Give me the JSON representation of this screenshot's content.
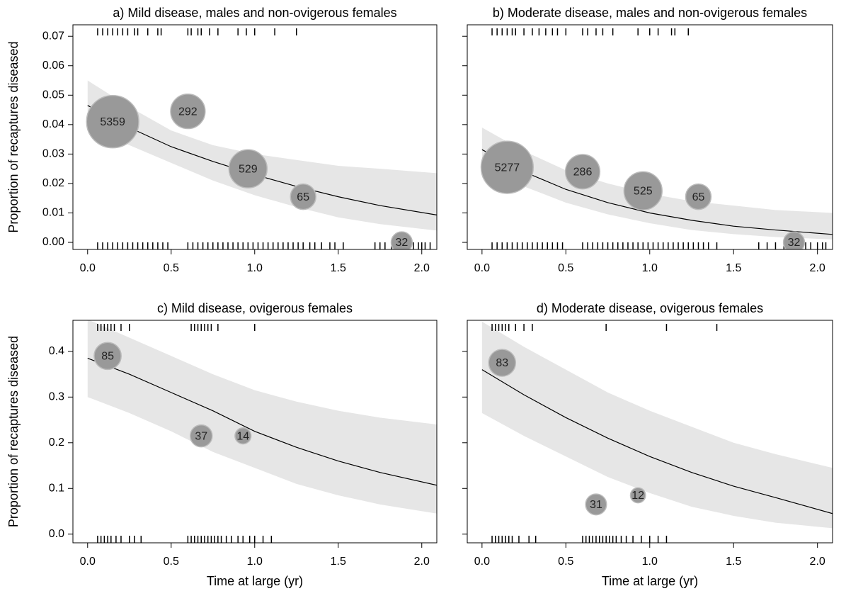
{
  "chart_data": [
    {
      "type": "bubble",
      "title": "a) Mild disease, males and non-ovigerous females",
      "ylabel": "Proportion of recaptures diseased",
      "xlim": [
        -0.088,
        2.09
      ],
      "ylim": [
        -0.0024,
        0.0739
      ],
      "xticks": [
        {
          "value": 0,
          "label": "0.0"
        },
        {
          "value": 0.5,
          "label": "0.5"
        },
        {
          "value": 1,
          "label": "1.0"
        },
        {
          "value": 1.5,
          "label": "1.5"
        },
        {
          "value": 2,
          "label": "2.0"
        }
      ],
      "yticks": [
        {
          "value": 0,
          "label": "0.00"
        },
        {
          "value": 0.01,
          "label": "0.01"
        },
        {
          "value": 0.02,
          "label": "0.02"
        },
        {
          "value": 0.03,
          "label": "0.03"
        },
        {
          "value": 0.04,
          "label": "0.04"
        },
        {
          "value": 0.05,
          "label": "0.05"
        },
        {
          "value": 0.06,
          "label": "0.06"
        },
        {
          "value": 0.07,
          "label": "0.07"
        }
      ],
      "bubbles": {
        "x": [
          0.15,
          0.6,
          0.96,
          1.29,
          1.88
        ],
        "y": [
          0.041,
          0.0445,
          0.025,
          0.0155,
          0.0
        ],
        "n": [
          5359,
          292,
          529,
          65,
          32
        ]
      },
      "fit": {
        "x": [
          0,
          0.25,
          0.5,
          0.75,
          1,
          1.25,
          1.5,
          1.75,
          2.09
        ],
        "y": [
          0.0465,
          0.039,
          0.0325,
          0.0275,
          0.023,
          0.019,
          0.0155,
          0.0125,
          0.0093
        ],
        "lower": [
          0.039,
          0.033,
          0.027,
          0.021,
          0.016,
          0.012,
          0.0085,
          0.0062,
          0.004
        ],
        "upper": [
          0.055,
          0.046,
          0.038,
          0.033,
          0.03,
          0.028,
          0.026,
          0.025,
          0.0235
        ]
      },
      "rug_top": [
        0.06,
        0.09,
        0.12,
        0.15,
        0.18,
        0.21,
        0.24,
        0.28,
        0.3,
        0.36,
        0.42,
        0.44,
        0.6,
        0.62,
        0.66,
        0.68,
        0.73,
        0.78,
        0.9,
        0.95,
        1.0,
        1.12,
        1.25
      ],
      "rug_bottom": [
        0.06,
        0.09,
        0.12,
        0.15,
        0.18,
        0.21,
        0.24,
        0.27,
        0.3,
        0.33,
        0.36,
        0.39,
        0.42,
        0.45,
        0.48,
        0.6,
        0.63,
        0.66,
        0.69,
        0.72,
        0.75,
        0.78,
        0.81,
        0.84,
        0.87,
        0.9,
        0.93,
        0.96,
        0.99,
        1.02,
        1.05,
        1.08,
        1.11,
        1.14,
        1.17,
        1.2,
        1.23,
        1.26,
        1.29,
        1.33,
        1.36,
        1.4,
        1.45,
        1.48,
        1.53,
        1.72,
        1.75,
        1.78,
        1.82,
        1.86,
        1.9,
        1.93,
        1.95,
        1.98,
        2.0,
        2.02,
        2.05
      ]
    },
    {
      "type": "bubble",
      "title": "b) Moderate disease, males and non-ovigerous females",
      "xlim": [
        -0.088,
        2.09
      ],
      "ylim": [
        -0.0024,
        0.0739
      ],
      "xticks": [
        {
          "value": 0,
          "label": "0.0"
        },
        {
          "value": 0.5,
          "label": "0.5"
        },
        {
          "value": 1,
          "label": "1.0"
        },
        {
          "value": 1.5,
          "label": "1.5"
        },
        {
          "value": 2,
          "label": "2.0"
        }
      ],
      "yticks": [
        0,
        0.01,
        0.02,
        0.03,
        0.04,
        0.05,
        0.06,
        0.07
      ],
      "bubbles": {
        "x": [
          0.15,
          0.6,
          0.96,
          1.29,
          1.86
        ],
        "y": [
          0.0255,
          0.024,
          0.0175,
          0.0155,
          0.0
        ],
        "n": [
          5277,
          286,
          525,
          65,
          32
        ]
      },
      "fit": {
        "x": [
          0,
          0.25,
          0.5,
          0.75,
          1,
          1.25,
          1.5,
          1.75,
          2.09
        ],
        "y": [
          0.0315,
          0.024,
          0.018,
          0.0135,
          0.01,
          0.0075,
          0.0055,
          0.0042,
          0.0027
        ],
        "lower": [
          0.025,
          0.019,
          0.0135,
          0.0095,
          0.0065,
          0.0042,
          0.0028,
          0.0018,
          0.001
        ],
        "upper": [
          0.039,
          0.031,
          0.0245,
          0.02,
          0.0165,
          0.014,
          0.0125,
          0.011,
          0.01
        ]
      },
      "rug_top": [
        0.06,
        0.09,
        0.12,
        0.15,
        0.18,
        0.2,
        0.25,
        0.3,
        0.34,
        0.38,
        0.42,
        0.45,
        0.5,
        0.6,
        0.63,
        0.68,
        0.72,
        0.78,
        0.93,
        1.0,
        1.05,
        1.13,
        1.15,
        1.23
      ],
      "rug_bottom": [
        0.06,
        0.09,
        0.12,
        0.15,
        0.18,
        0.21,
        0.24,
        0.27,
        0.3,
        0.33,
        0.36,
        0.39,
        0.42,
        0.45,
        0.48,
        0.6,
        0.63,
        0.66,
        0.69,
        0.72,
        0.75,
        0.78,
        0.81,
        0.84,
        0.87,
        0.9,
        0.93,
        0.96,
        0.99,
        1.02,
        1.05,
        1.08,
        1.11,
        1.14,
        1.17,
        1.2,
        1.23,
        1.26,
        1.29,
        1.32,
        1.35,
        1.4,
        1.65,
        1.7,
        1.75,
        1.8,
        1.85,
        1.9,
        1.93,
        1.96,
        2.0,
        2.03,
        2.05
      ]
    },
    {
      "type": "bubble",
      "title": "c) Mild disease, ovigerous females",
      "ylabel": "Proportion of recaptures diseased",
      "xlabel": "Time at large (yr)",
      "xlim": [
        -0.088,
        2.09
      ],
      "ylim": [
        -0.019,
        0.468
      ],
      "xticks": [
        {
          "value": 0,
          "label": "0.0"
        },
        {
          "value": 0.5,
          "label": "0.5"
        },
        {
          "value": 1,
          "label": "1.0"
        },
        {
          "value": 1.5,
          "label": "1.5"
        },
        {
          "value": 2,
          "label": "2.0"
        }
      ],
      "yticks": [
        {
          "value": 0,
          "label": "0.0"
        },
        {
          "value": 0.1,
          "label": "0.1"
        },
        {
          "value": 0.2,
          "label": "0.2"
        },
        {
          "value": 0.3,
          "label": "0.3"
        },
        {
          "value": 0.4,
          "label": "0.4"
        }
      ],
      "bubbles": {
        "x": [
          0.12,
          0.68,
          0.93
        ],
        "y": [
          0.39,
          0.215,
          0.215
        ],
        "n": [
          85,
          37,
          14
        ]
      },
      "fit": {
        "x": [
          0,
          0.25,
          0.5,
          0.75,
          1,
          1.25,
          1.5,
          1.75,
          2.09
        ],
        "y": [
          0.385,
          0.35,
          0.31,
          0.27,
          0.225,
          0.19,
          0.16,
          0.135,
          0.107
        ],
        "lower": [
          0.3,
          0.265,
          0.225,
          0.18,
          0.145,
          0.11,
          0.085,
          0.065,
          0.045
        ],
        "upper": [
          0.47,
          0.43,
          0.39,
          0.35,
          0.315,
          0.29,
          0.27,
          0.255,
          0.24
        ]
      },
      "rug_top": [
        0.06,
        0.08,
        0.1,
        0.12,
        0.14,
        0.16,
        0.2,
        0.25,
        0.62,
        0.64,
        0.66,
        0.68,
        0.7,
        0.72,
        0.74,
        0.78,
        1.0
      ],
      "rug_bottom": [
        0.06,
        0.08,
        0.1,
        0.12,
        0.14,
        0.17,
        0.2,
        0.25,
        0.28,
        0.32,
        0.6,
        0.62,
        0.64,
        0.66,
        0.68,
        0.7,
        0.72,
        0.74,
        0.76,
        0.78,
        0.8,
        0.83,
        0.86,
        0.9,
        0.93,
        0.97,
        1.0,
        1.05,
        1.1
      ]
    },
    {
      "type": "bubble",
      "title": "d) Moderate disease, ovigerous females",
      "xlabel": "Time at large (yr)",
      "xlim": [
        -0.088,
        2.09
      ],
      "ylim": [
        -0.019,
        0.468
      ],
      "xticks": [
        {
          "value": 0,
          "label": "0.0"
        },
        {
          "value": 0.5,
          "label": "0.5"
        },
        {
          "value": 1,
          "label": "1.0"
        },
        {
          "value": 1.5,
          "label": "1.5"
        },
        {
          "value": 2,
          "label": "2.0"
        }
      ],
      "yticks": [
        0,
        0.1,
        0.2,
        0.3,
        0.4
      ],
      "bubbles": {
        "x": [
          0.12,
          0.68,
          0.93
        ],
        "y": [
          0.375,
          0.065,
          0.085
        ],
        "n": [
          83,
          31,
          12
        ]
      },
      "fit": {
        "x": [
          0,
          0.25,
          0.5,
          0.75,
          1,
          1.25,
          1.5,
          1.75,
          2.09
        ],
        "y": [
          0.36,
          0.305,
          0.255,
          0.21,
          0.17,
          0.135,
          0.105,
          0.08,
          0.045
        ],
        "lower": [
          0.265,
          0.215,
          0.17,
          0.125,
          0.09,
          0.06,
          0.04,
          0.025,
          0.013
        ],
        "upper": [
          0.465,
          0.41,
          0.36,
          0.31,
          0.27,
          0.235,
          0.2,
          0.175,
          0.145
        ]
      },
      "rug_top": [
        0.06,
        0.08,
        0.1,
        0.12,
        0.14,
        0.16,
        0.2,
        0.25,
        0.3,
        0.74,
        1.1,
        1.4
      ],
      "rug_bottom": [
        0.06,
        0.08,
        0.1,
        0.12,
        0.14,
        0.16,
        0.18,
        0.22,
        0.28,
        0.32,
        0.6,
        0.62,
        0.64,
        0.66,
        0.68,
        0.7,
        0.72,
        0.74,
        0.76,
        0.78,
        0.8,
        0.83,
        0.86,
        0.9,
        0.95,
        1.0,
        1.05,
        1.1
      ]
    }
  ]
}
